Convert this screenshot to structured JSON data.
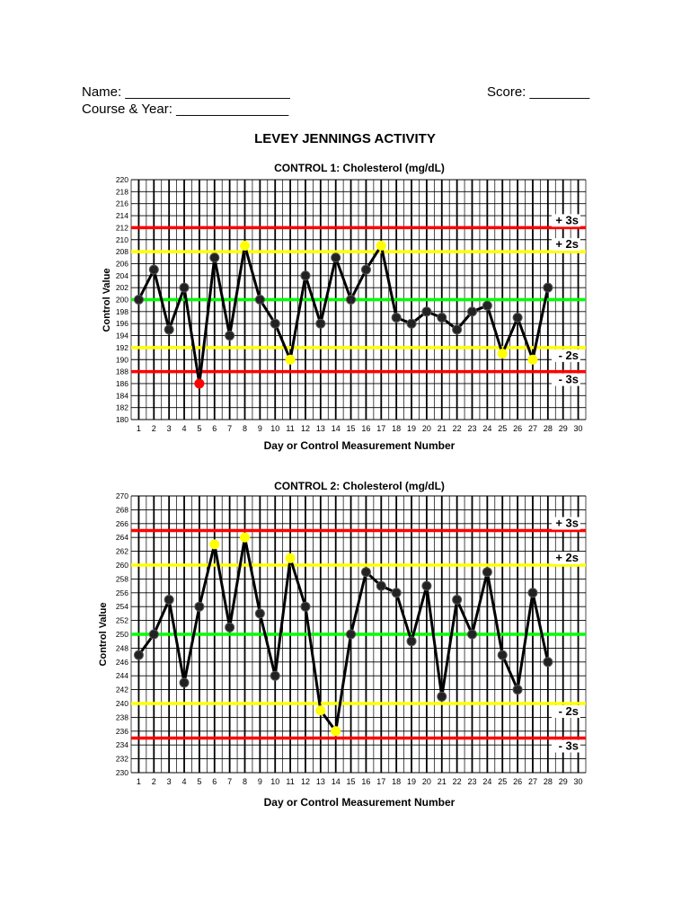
{
  "header": {
    "name_label": "Name:",
    "name_blank": "______________________",
    "score_label": "Score:",
    "score_blank": "________",
    "course_label": "Course & Year:",
    "course_blank": "_______________"
  },
  "document_title": "LEVEY JENNINGS ACTIVITY",
  "chart_data": [
    {
      "type": "line",
      "title": "CONTROL 1: Cholesterol (mg/dL)",
      "xlabel": "Day or Control Measurement Number",
      "ylabel": "Control Value",
      "x_ticks": [
        1,
        2,
        3,
        4,
        5,
        6,
        7,
        8,
        9,
        10,
        11,
        12,
        13,
        14,
        15,
        16,
        17,
        18,
        19,
        20,
        21,
        22,
        23,
        24,
        25,
        26,
        27,
        28,
        29,
        30
      ],
      "xlim": [
        1,
        30
      ],
      "ylim": [
        180,
        220
      ],
      "y_step": 2,
      "grid": true,
      "control_lines": [
        {
          "label": "+ 3s",
          "value": 212,
          "color": "#ff0000"
        },
        {
          "label": "+ 2s",
          "value": 208,
          "color": "#ffff00"
        },
        {
          "label": "",
          "value": 200,
          "color": "#00ff00"
        },
        {
          "label": "- 2s",
          "value": 192,
          "color": "#ffff00"
        },
        {
          "label": "- 3s",
          "value": 188,
          "color": "#ff0000"
        }
      ],
      "series": [
        {
          "x": [
            1,
            2,
            3,
            4,
            5,
            6,
            7,
            8,
            9,
            10,
            11,
            12,
            13,
            14,
            15,
            16,
            17,
            18,
            19,
            20,
            21,
            22,
            23,
            24,
            25,
            26,
            27,
            28
          ],
          "values": [
            200,
            205,
            195,
            202,
            186,
            207,
            194,
            209,
            200,
            196,
            190,
            204,
            196,
            207,
            200,
            205,
            209,
            197,
            196,
            198,
            197,
            195,
            198,
            199,
            191,
            197,
            190,
            202
          ],
          "point_colors": [
            "#000000",
            "#000000",
            "#000000",
            "#000000",
            "#ff0000",
            "#000000",
            "#000000",
            "#ffff00",
            "#000000",
            "#000000",
            "#ffff00",
            "#000000",
            "#000000",
            "#000000",
            "#000000",
            "#000000",
            "#ffff00",
            "#000000",
            "#000000",
            "#000000",
            "#000000",
            "#000000",
            "#000000",
            "#000000",
            "#ffff00",
            "#000000",
            "#ffff00",
            "#000000"
          ]
        }
      ]
    },
    {
      "type": "line",
      "title": "CONTROL 2: Cholesterol (mg/dL)",
      "xlabel": "Day or Control Measurement Number",
      "ylabel": "Control Value",
      "x_ticks": [
        1,
        2,
        3,
        4,
        5,
        6,
        7,
        8,
        9,
        10,
        11,
        12,
        13,
        14,
        15,
        16,
        17,
        18,
        19,
        20,
        21,
        22,
        23,
        24,
        25,
        26,
        27,
        28,
        29,
        30
      ],
      "xlim": [
        1,
        30
      ],
      "ylim": [
        230,
        270
      ],
      "y_step": 2,
      "grid": true,
      "control_lines": [
        {
          "label": "+ 3s",
          "value": 265,
          "color": "#ff0000"
        },
        {
          "label": "+ 2s",
          "value": 260,
          "color": "#ffff00"
        },
        {
          "label": "",
          "value": 250,
          "color": "#00ff00"
        },
        {
          "label": "- 2s",
          "value": 240,
          "color": "#ffff00"
        },
        {
          "label": "- 3s",
          "value": 235,
          "color": "#ff0000"
        }
      ],
      "series": [
        {
          "x": [
            1,
            2,
            3,
            4,
            5,
            6,
            7,
            8,
            9,
            10,
            11,
            12,
            13,
            14,
            15,
            16,
            17,
            18,
            19,
            20,
            21,
            22,
            23,
            24,
            25,
            26,
            27,
            28
          ],
          "values": [
            247,
            250,
            255,
            243,
            254,
            263,
            251,
            264,
            253,
            244,
            261,
            254,
            239,
            236,
            250,
            259,
            257,
            256,
            249,
            257,
            241,
            255,
            250,
            259,
            247,
            242,
            256,
            246
          ],
          "point_colors": [
            "#000000",
            "#000000",
            "#000000",
            "#000000",
            "#000000",
            "#ffff00",
            "#000000",
            "#ffff00",
            "#000000",
            "#000000",
            "#ffff00",
            "#000000",
            "#ffff00",
            "#ffff00",
            "#000000",
            "#000000",
            "#000000",
            "#000000",
            "#000000",
            "#000000",
            "#000000",
            "#000000",
            "#000000",
            "#000000",
            "#000000",
            "#000000",
            "#000000",
            "#000000"
          ]
        }
      ]
    }
  ]
}
